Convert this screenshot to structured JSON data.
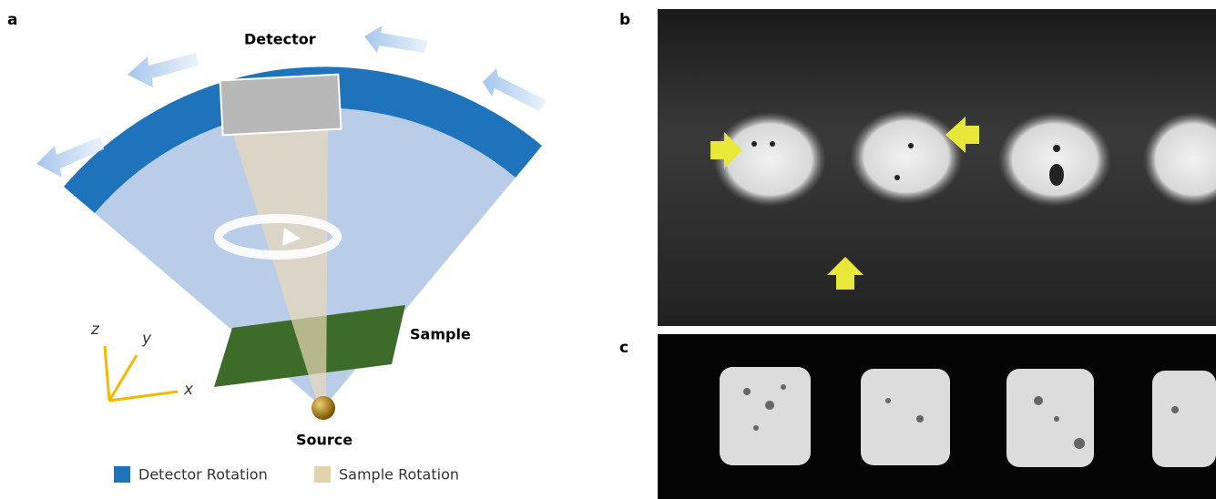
{
  "panels": {
    "a": {
      "label": "a",
      "detector": "Detector",
      "sample": "Sample",
      "source": "Source",
      "axes": {
        "x": "x",
        "y": "y",
        "z": "z"
      },
      "legend": [
        "Detector Rotation",
        "Sample Rotation"
      ]
    },
    "b": {
      "label": "b"
    },
    "c": {
      "label": "c"
    }
  }
}
